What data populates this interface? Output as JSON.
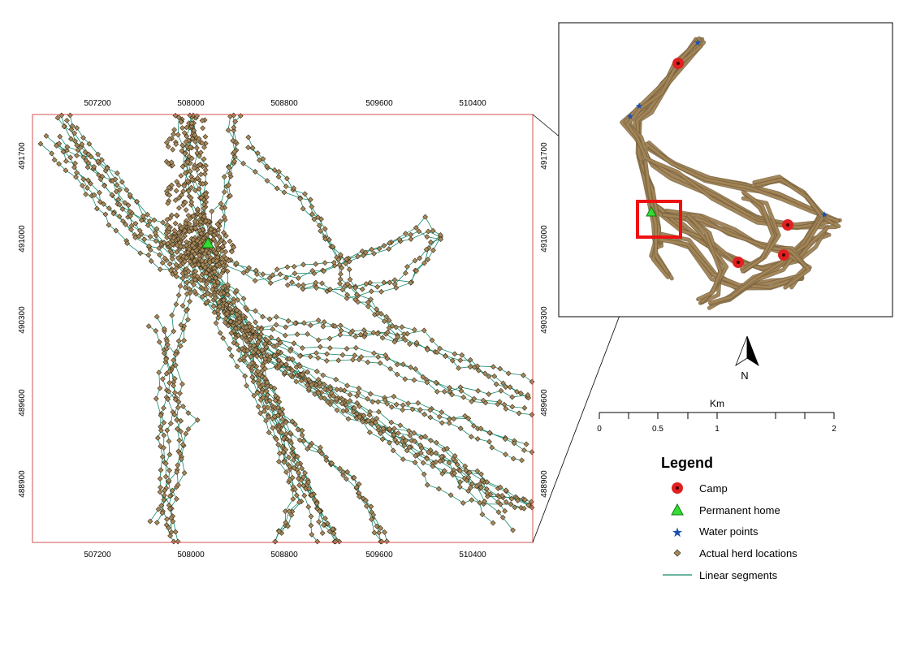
{
  "main_map": {
    "x_ticks": [
      "507200",
      "508000",
      "508800",
      "509600",
      "510400"
    ],
    "y_ticks": [
      "491700",
      "491000",
      "490300",
      "489600",
      "488900"
    ],
    "permanent_home_color": "#33dd33",
    "herd_point_color": "#a8895a",
    "segment_color": "#148a6a",
    "frame_color": "#d05050"
  },
  "north_arrow": {
    "label": "N"
  },
  "scale_bar": {
    "unit": "Km",
    "labels": [
      "0",
      "0.5",
      "1",
      "2"
    ]
  },
  "legend": {
    "title": "Legend",
    "items": [
      {
        "label": "Camp",
        "icon": "camp-icon",
        "color": "#e02020"
      },
      {
        "label": "Permanent home",
        "icon": "triangle-icon",
        "color": "#33dd33"
      },
      {
        "label": "Water points",
        "icon": "star-icon",
        "color": "#1a4fb0"
      },
      {
        "label": "Actual herd locations",
        "icon": "diamond-icon",
        "color": "#a8895a"
      },
      {
        "label": "Linear segments",
        "icon": "line-icon",
        "color": "#148a6a"
      }
    ]
  }
}
